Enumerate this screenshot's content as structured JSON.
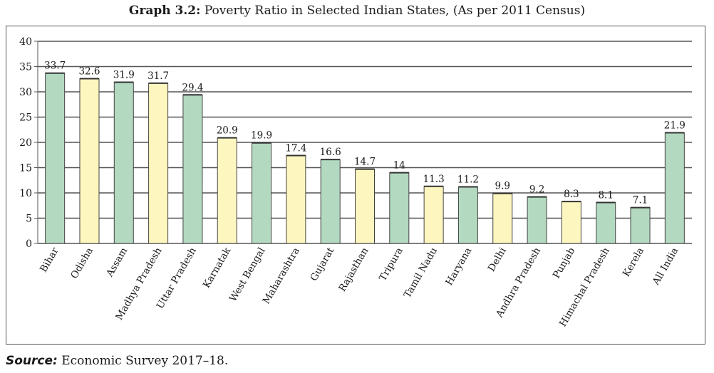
{
  "title": {
    "prefix": "Graph 3.2:",
    "text": "Poverty Ratio in Selected Indian States, (As per 2011 Census)"
  },
  "source": {
    "label": "Source:",
    "text": "Economic Survey 2017–18."
  },
  "colors": {
    "green": "#b3d9c0",
    "yellow": "#fdf6be",
    "bar_stroke": "#444444",
    "grid": "#555555",
    "text": "#1a1a1a"
  },
  "chart_data": {
    "type": "bar",
    "title": "Poverty Ratio in Selected Indian States, (As per 2011 Census)",
    "xlabel": "",
    "ylabel": "",
    "ylim": [
      0,
      40
    ],
    "yticks": [
      0,
      5,
      10,
      15,
      20,
      25,
      30,
      35,
      40
    ],
    "grid": true,
    "legend": "none",
    "categories": [
      "Bihar",
      "Odisha",
      "Assam",
      "Madhya Pradesh",
      "Uttar Pradesh",
      "Karnatak",
      "West Bengal",
      "Maharashtra",
      "Gujarat",
      "Rajasthan",
      "Tripura",
      "Tamil Nadu",
      "Haryana",
      "Delhi",
      "Andhra Pradesh",
      "Punjab",
      "Himachal Pradesh",
      "Kerela",
      "All India"
    ],
    "values": [
      33.7,
      32.6,
      31.9,
      31.7,
      29.4,
      20.9,
      19.9,
      17.4,
      16.6,
      14.7,
      14,
      11.3,
      11.2,
      9.9,
      9.2,
      8.3,
      8.1,
      7.1,
      21.9
    ],
    "data_labels": [
      "33.7",
      "32.6",
      "31.9",
      "31.7",
      "29.4",
      "20.9",
      "19.9",
      "17.4",
      "16.6",
      "14.7",
      "14",
      "11.3",
      "11.2",
      "9.9",
      "9.2",
      "8.3",
      "8.1",
      "7.1",
      "21.9"
    ],
    "bar_colors": [
      "green",
      "yellow",
      "green",
      "yellow",
      "green",
      "yellow",
      "green",
      "yellow",
      "green",
      "yellow",
      "green",
      "yellow",
      "green",
      "yellow",
      "green",
      "yellow",
      "green",
      "green",
      "green"
    ]
  }
}
